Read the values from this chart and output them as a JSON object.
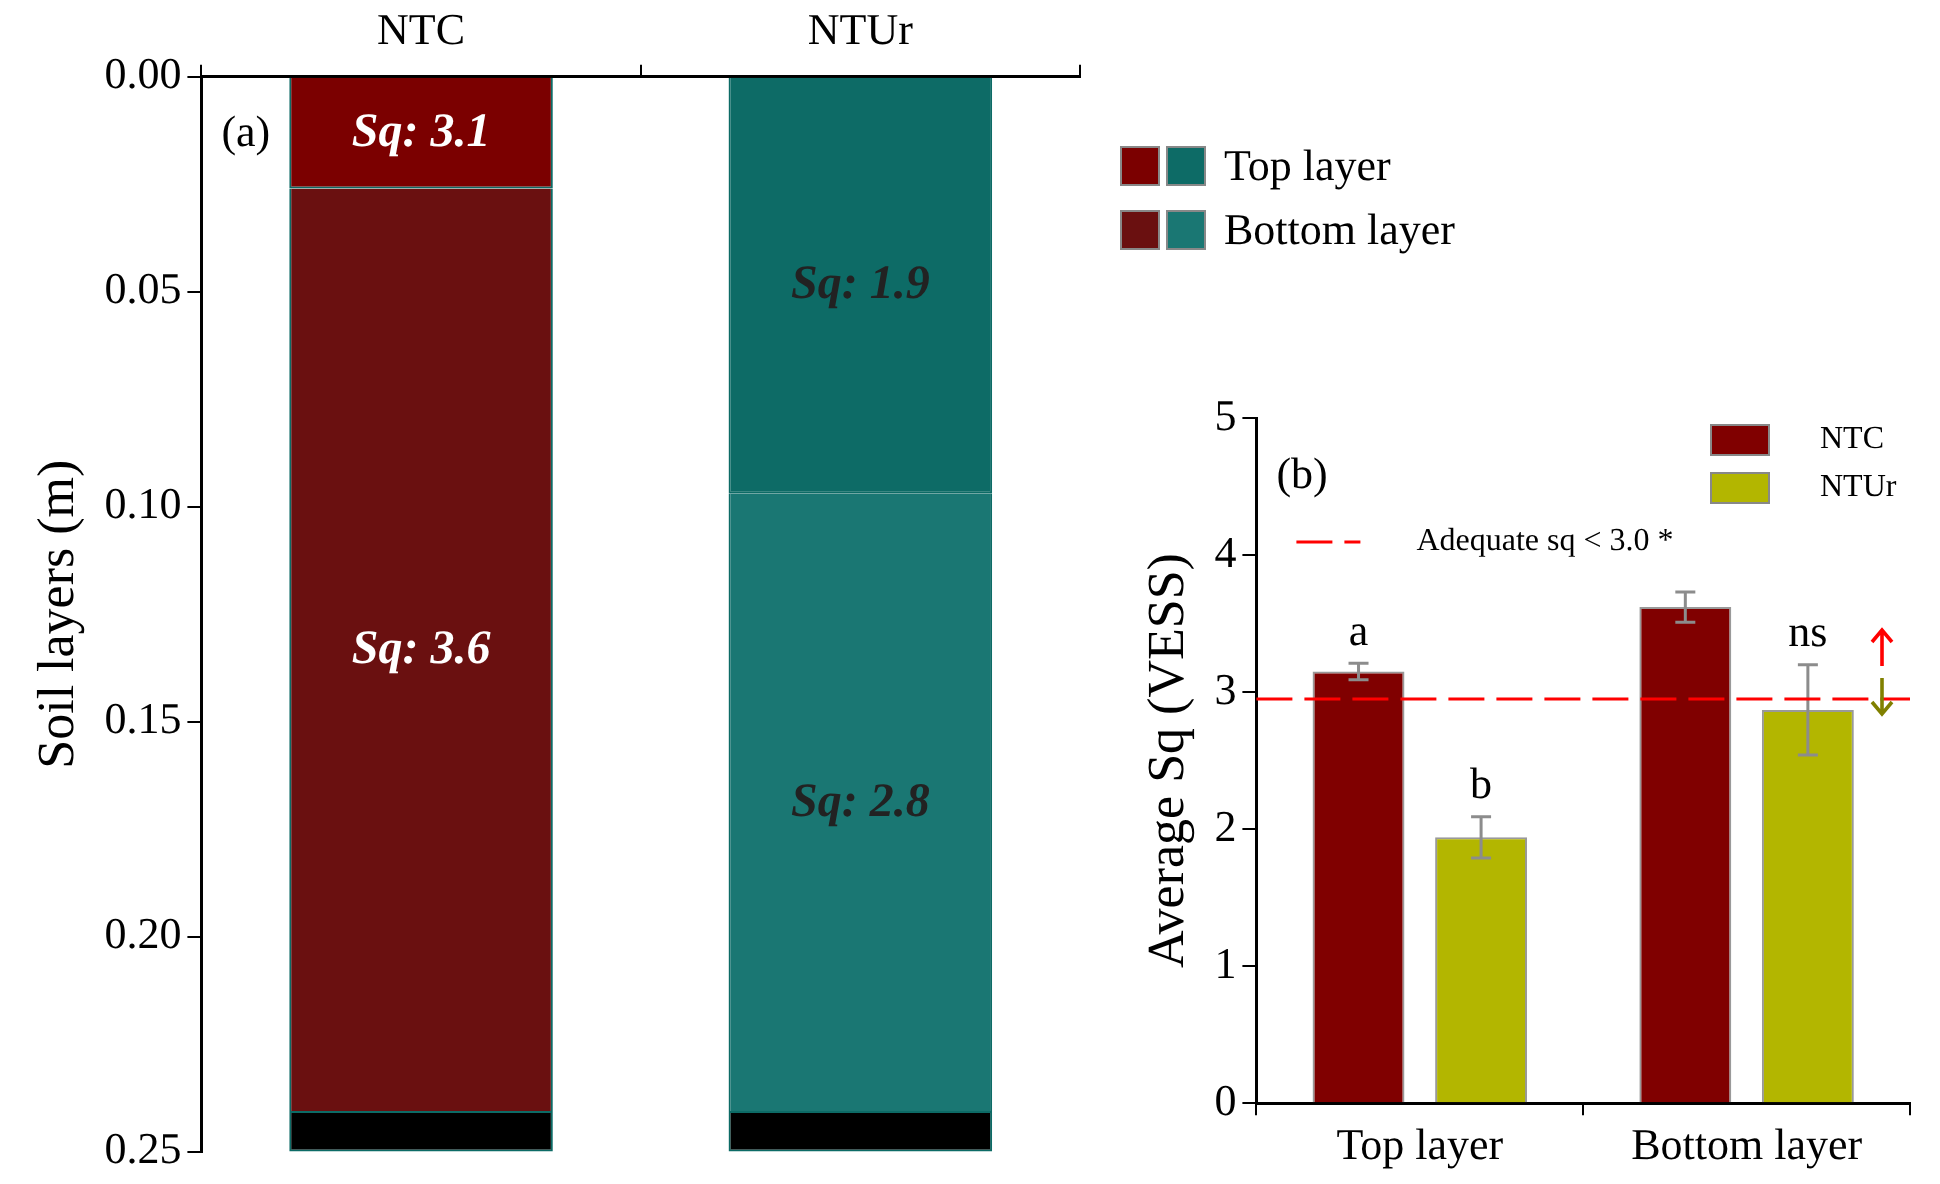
{
  "chart_data": [
    {
      "type": "bar",
      "stacked": true,
      "categories": [
        "NTC",
        "NTUr"
      ],
      "ylabel": "Soil layers (m)",
      "ylim": [
        0.25,
        0
      ],
      "yticks": [
        {
          "value": 0,
          "label": "0.00"
        },
        {
          "value": 0.05,
          "label": "0.05"
        },
        {
          "value": 0.1,
          "label": "0.10"
        },
        {
          "value": 0.15,
          "label": "0.15"
        },
        {
          "value": 0.2,
          "label": "0.20"
        },
        {
          "value": 0.25,
          "label": "0.25"
        }
      ],
      "legend": "top right",
      "annotations": [
        "(a)",
        "Sq: 3.1",
        "Sq: 3.6",
        "Sq: 1.9",
        "Sq: 2.8"
      ],
      "series": [
        {
          "name": "Top layer",
          "colors": [
            "#7b0000",
            "#0d6b66"
          ],
          "values": [
            0.026,
            0.097
          ]
        },
        {
          "name": "Bottom layer",
          "colors": [
            "#6a1010",
            "#1a7773"
          ],
          "values": [
            0.215,
            0.144
          ]
        },
        {
          "color": "#000000",
          "values": [
            0.009,
            0.009
          ]
        }
      ]
    },
    {
      "type": "bar",
      "categories": [
        "Top layer",
        "Bottom layer"
      ],
      "ylabel": "Average Sq (VESS)",
      "ylim": [
        0,
        5
      ],
      "yticks": [
        0,
        1,
        2,
        3,
        4,
        5
      ],
      "legend": "top right",
      "series": [
        {
          "name": "NTC",
          "color": "#800000",
          "values": [
            3.15,
            3.62
          ],
          "errors": [
            0.06,
            0.11
          ]
        },
        {
          "name": "NTUr",
          "color": "#b3b600",
          "values": [
            1.94,
            2.87
          ],
          "errors": [
            0.15,
            0.33
          ]
        }
      ],
      "ref_lines": [
        {
          "axis": "y",
          "value": 2.95,
          "label": "Adequate sq < 3.0 *",
          "color": "#ff0000",
          "line_style": "dashed"
        }
      ],
      "annotations": [
        "(b)",
        "a",
        "b",
        "ns"
      ]
    }
  ]
}
